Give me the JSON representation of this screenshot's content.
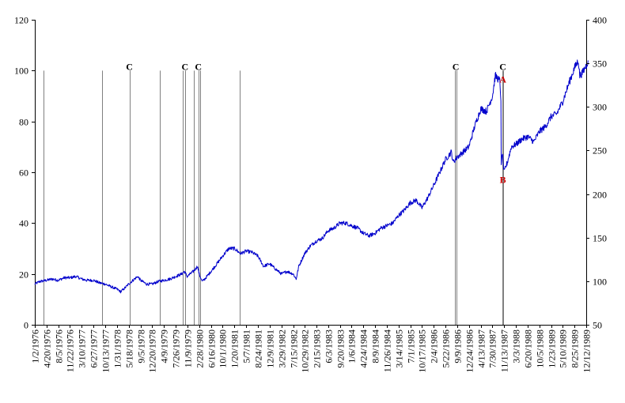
{
  "colors": {
    "series": "#0000CC",
    "annotation_red": "#CC0000",
    "marker_line": "#808080",
    "axis": "#000000"
  },
  "chart_data": {
    "type": "line",
    "title": "",
    "xlabel": "",
    "ylabel": "",
    "x_tick_labels": [
      "1/2/1976",
      "4/20/1976",
      "8/5/1976",
      "11/22/1976",
      "3/10/1977",
      "6/27/1977",
      "10/13/1977",
      "1/31/1978",
      "5/18/1978",
      "9/5/1978",
      "12/20/1978",
      "4/9/1979",
      "7/26/1979",
      "11/9/1979",
      "2/28/1980",
      "6/16/1980",
      "10/1/1980",
      "1/20/1981",
      "5/7/1981",
      "8/24/1981",
      "12/9/1981",
      "3/29/1982",
      "7/15/1982",
      "10/29/1982",
      "2/15/1983",
      "6/3/1983",
      "9/20/1983",
      "1/6/1984",
      "4/24/1984",
      "8/9/1984",
      "11/26/1984",
      "3/14/1985",
      "7/1/1985",
      "10/17/1985",
      "2/4/1986",
      "5/22/1986",
      "9/9/1986",
      "12/24/1986",
      "4/13/1987",
      "7/30/1987",
      "11/13/1987",
      "3/3/1988",
      "6/20/1988",
      "10/5/1988",
      "1/23/1989",
      "5/10/1989",
      "8/25/1989",
      "12/12/1989"
    ],
    "y_left": {
      "min": 0,
      "max": 120,
      "ticks": [
        0,
        20,
        40,
        60,
        80,
        100,
        120
      ]
    },
    "y_right": {
      "min": 50,
      "max": 400,
      "ticks": [
        50,
        100,
        150,
        200,
        250,
        300,
        350,
        400
      ]
    },
    "series": [
      {
        "axis": "left",
        "points": [
          [
            "1/2/1976",
            16
          ],
          [
            "2/15/1976",
            17
          ],
          [
            "4/20/1976",
            17.5
          ],
          [
            "6/10/1976",
            18
          ],
          [
            "8/5/1976",
            17.5
          ],
          [
            "10/1/1976",
            18.5
          ],
          [
            "11/22/1976",
            18.5
          ],
          [
            "1/15/1977",
            19
          ],
          [
            "3/10/1977",
            18
          ],
          [
            "4/25/1977",
            17.5
          ],
          [
            "6/27/1977",
            17.5
          ],
          [
            "8/20/1977",
            16.5
          ],
          [
            "10/13/1977",
            16
          ],
          [
            "12/5/1977",
            15
          ],
          [
            "1/31/1978",
            14
          ],
          [
            "3/5/1978",
            13
          ],
          [
            "4/1/1978",
            14
          ],
          [
            "5/18/1978",
            16
          ],
          [
            "7/10/1978",
            18
          ],
          [
            "8/10/1978",
            19
          ],
          [
            "9/5/1978",
            17.5
          ],
          [
            "10/30/1978",
            16
          ],
          [
            "12/20/1978",
            16
          ],
          [
            "2/15/1979",
            17
          ],
          [
            "4/9/1979",
            17.5
          ],
          [
            "6/1/1979",
            18
          ],
          [
            "7/26/1979",
            19
          ],
          [
            "9/20/1979",
            20
          ],
          [
            "10/15/1979",
            21
          ],
          [
            "11/9/1979",
            19
          ],
          [
            "1/5/1980",
            21
          ],
          [
            "2/13/1980",
            23
          ],
          [
            "2/28/1980",
            20
          ],
          [
            "3/27/1980",
            17
          ],
          [
            "4/20/1980",
            18
          ],
          [
            "6/16/1980",
            21
          ],
          [
            "8/10/1980",
            24
          ],
          [
            "10/1/1980",
            27
          ],
          [
            "11/28/1980",
            30
          ],
          [
            "1/20/1981",
            30
          ],
          [
            "3/15/1981",
            28
          ],
          [
            "5/7/1981",
            29
          ],
          [
            "6/30/1981",
            28.5
          ],
          [
            "8/24/1981",
            27
          ],
          [
            "10/15/1981",
            23
          ],
          [
            "12/9/1981",
            24
          ],
          [
            "2/1/1982",
            22
          ],
          [
            "3/29/1982",
            20
          ],
          [
            "5/20/1982",
            21
          ],
          [
            "7/15/1982",
            20
          ],
          [
            "8/12/1982",
            18
          ],
          [
            "9/5/1982",
            23
          ],
          [
            "10/29/1982",
            28
          ],
          [
            "12/20/1982",
            31
          ],
          [
            "2/15/1983",
            33
          ],
          [
            "4/10/1983",
            34
          ],
          [
            "6/3/1983",
            37
          ],
          [
            "7/25/1983",
            38
          ],
          [
            "9/20/1983",
            40
          ],
          [
            "11/15/1983",
            40
          ],
          [
            "1/6/1984",
            39
          ],
          [
            "3/1/1984",
            38
          ],
          [
            "4/24/1984",
            36
          ],
          [
            "6/15/1984",
            35
          ],
          [
            "8/9/1984",
            36
          ],
          [
            "10/1/1984",
            38
          ],
          [
            "11/26/1984",
            39
          ],
          [
            "1/20/1985",
            40
          ],
          [
            "3/14/1985",
            43
          ],
          [
            "5/5/1985",
            45
          ],
          [
            "7/1/1985",
            48
          ],
          [
            "8/25/1985",
            49
          ],
          [
            "10/17/1985",
            46
          ],
          [
            "12/10/1985",
            50
          ],
          [
            "2/4/1986",
            55
          ],
          [
            "3/30/1986",
            60
          ],
          [
            "5/22/1986",
            65
          ],
          [
            "7/15/1986",
            68
          ],
          [
            "8/1/1986",
            64
          ],
          [
            "9/9/1986",
            66
          ],
          [
            "11/1/1986",
            68
          ],
          [
            "12/24/1986",
            70
          ],
          [
            "2/15/1987",
            78
          ],
          [
            "4/13/1987",
            85
          ],
          [
            "6/5/1987",
            84
          ],
          [
            "7/30/1987",
            90
          ],
          [
            "8/25/1987",
            98
          ],
          [
            "10/5/1987",
            96
          ],
          [
            "10/16/1987",
            89
          ],
          [
            "10/19/1987",
            62
          ],
          [
            "10/30/1987",
            68
          ],
          [
            "11/13/1987",
            60
          ],
          [
            "12/15/1987",
            64
          ],
          [
            "1/20/1988",
            70
          ],
          [
            "3/3/1988",
            71
          ],
          [
            "4/25/1988",
            73
          ],
          [
            "6/20/1988",
            74
          ],
          [
            "8/15/1988",
            72
          ],
          [
            "10/5/1988",
            76
          ],
          [
            "11/30/1988",
            78
          ],
          [
            "1/23/1989",
            82
          ],
          [
            "3/15/1989",
            83
          ],
          [
            "5/10/1989",
            88
          ],
          [
            "7/5/1989",
            95
          ],
          [
            "8/25/1989",
            101
          ],
          [
            "9/30/1989",
            104
          ],
          [
            "10/13/1989",
            98
          ],
          [
            "11/5/1989",
            99
          ],
          [
            "12/12/1989",
            102
          ],
          [
            "12/29/1989",
            104
          ]
        ]
      }
    ],
    "vertical_markers": [
      "3/20/1976",
      "9/15/1977",
      "5/25/1978",
      "3/5/1979",
      "9/28/1979",
      "10/20/1979",
      "1/10/1980",
      "2/20/1980",
      "3/5/1980",
      "3/10/1981",
      "8/20/1986",
      "8/28/1986",
      "11/1/1987",
      "11/8/1987"
    ],
    "annotations": [
      {
        "text": "C",
        "x": "5/25/1978",
        "y": 101.5,
        "color": "#000000"
      },
      {
        "text": "C",
        "x": "10/20/1979",
        "y": 101.5,
        "color": "#000000"
      },
      {
        "text": "C",
        "x": "2/20/1980",
        "y": 101.5,
        "color": "#000000"
      },
      {
        "text": "C",
        "x": "8/25/1986",
        "y": 101.5,
        "color": "#000000"
      },
      {
        "text": "C",
        "x": "11/3/1987",
        "y": 101.5,
        "color": "#000000"
      },
      {
        "text": "A",
        "x": "11/3/1987",
        "y": 96.5,
        "color": "#CC0000"
      },
      {
        "text": "B",
        "x": "11/3/1987",
        "y": 57,
        "color": "#CC0000"
      }
    ]
  }
}
